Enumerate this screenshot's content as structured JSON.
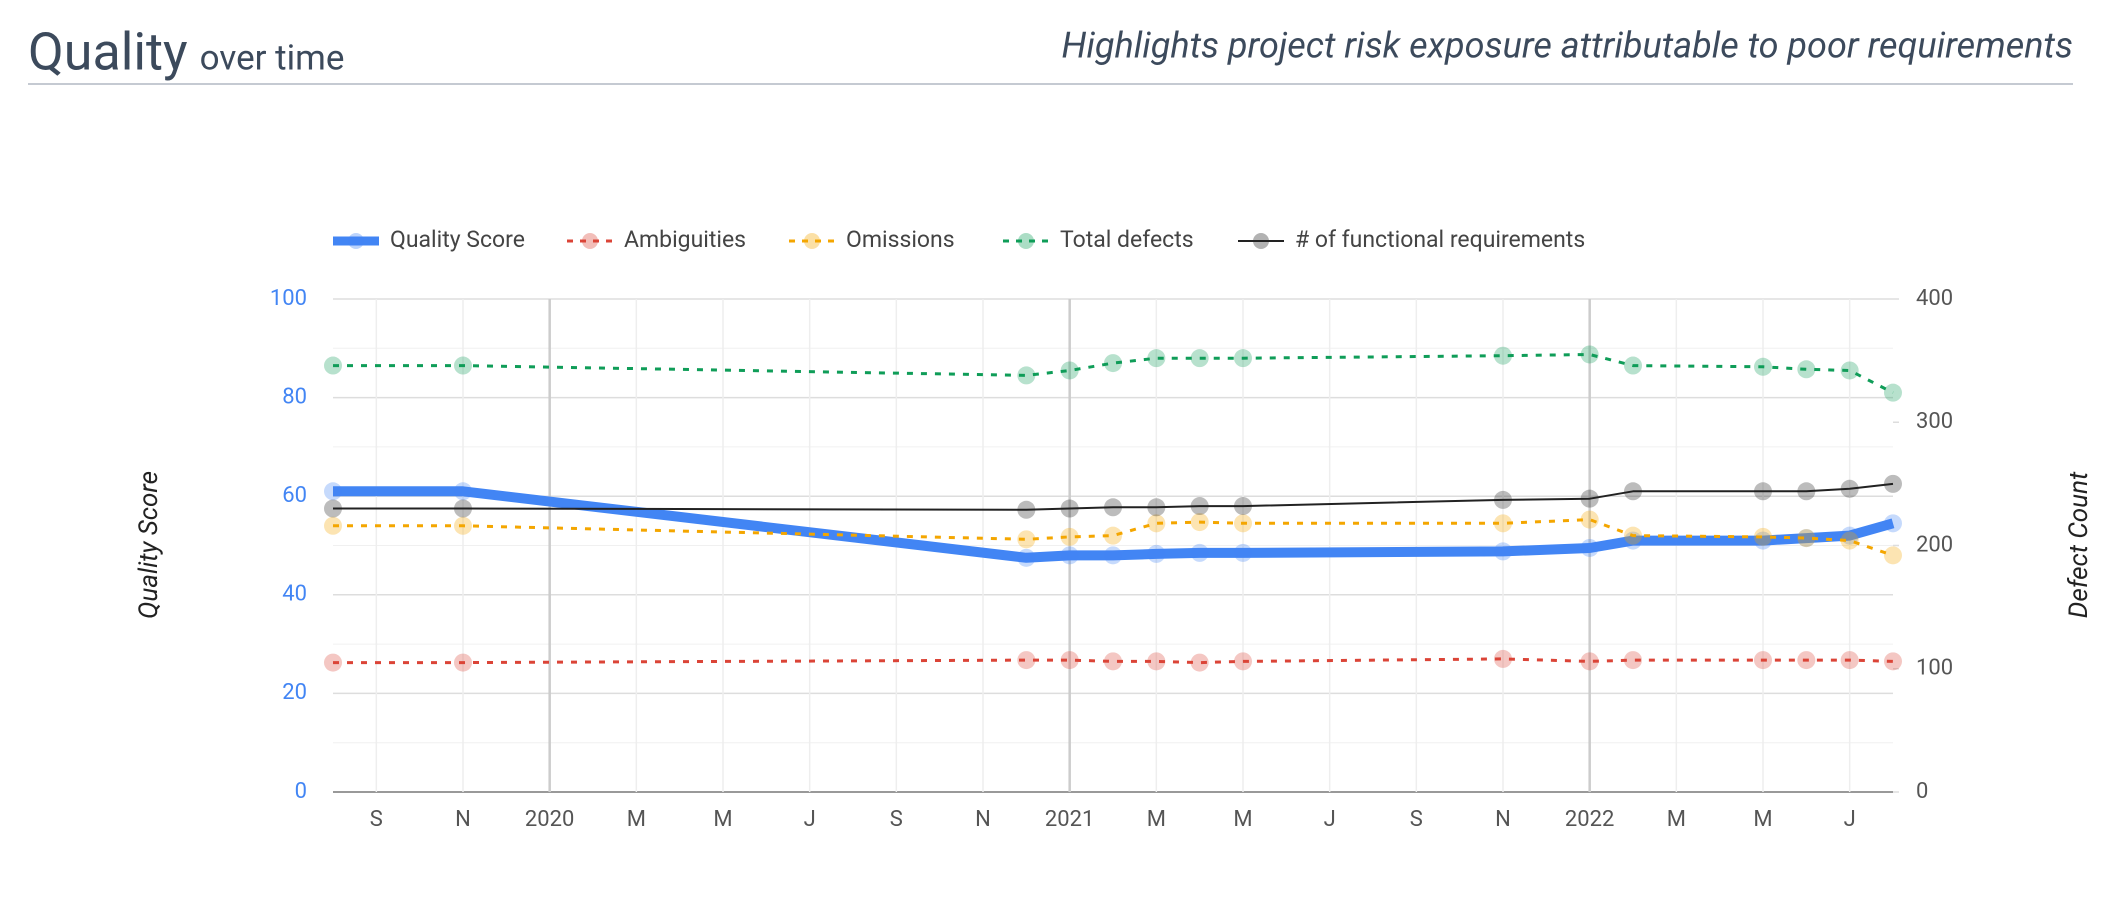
{
  "chart_data": {
    "type": "line",
    "title": "Quality",
    "title_tail": "over time",
    "subtitle": "Highlights project risk exposure attributable to poor requirements",
    "y_label": "Quality Score",
    "y2_label": "Defect Count",
    "x": [
      "2019-08",
      "2019-11",
      "2020-12",
      "2021-01",
      "2021-02",
      "2021-03",
      "2021-04",
      "2021-05",
      "2021-11",
      "2022-01",
      "2022-02",
      "2022-05",
      "2022-06",
      "2022-07",
      "2022-08"
    ],
    "xlim": [
      "2019-08",
      "2022-08"
    ],
    "xticks": [
      {
        "value": "2019-09",
        "label": "S"
      },
      {
        "value": "2019-11",
        "label": "N"
      },
      {
        "value": "2020-01",
        "label": "2020"
      },
      {
        "value": "2020-03",
        "label": "M"
      },
      {
        "value": "2020-05",
        "label": "M"
      },
      {
        "value": "2020-07",
        "label": "J"
      },
      {
        "value": "2020-09",
        "label": "S"
      },
      {
        "value": "2020-11",
        "label": "N"
      },
      {
        "value": "2021-01",
        "label": "2021"
      },
      {
        "value": "2021-03",
        "label": "M"
      },
      {
        "value": "2021-05",
        "label": "M"
      },
      {
        "value": "2021-07",
        "label": "J"
      },
      {
        "value": "2021-09",
        "label": "S"
      },
      {
        "value": "2021-11",
        "label": "N"
      },
      {
        "value": "2022-01",
        "label": "2022"
      },
      {
        "value": "2022-03",
        "label": "M"
      },
      {
        "value": "2022-05",
        "label": "M"
      },
      {
        "value": "2022-07",
        "label": "J"
      }
    ],
    "ylim": [
      0,
      100
    ],
    "yticks": [
      0,
      20,
      40,
      60,
      80,
      100
    ],
    "y2lim": [
      0,
      400
    ],
    "y2ticks": [
      0,
      100,
      200,
      300,
      400
    ],
    "grid": true,
    "legend": "top",
    "series": [
      {
        "name": "Quality Score",
        "color": "#4285f4",
        "axis": "y",
        "dashed": false,
        "width": 10,
        "values": [
          61,
          61,
          47.5,
          48,
          48,
          48.3,
          48.5,
          48.5,
          48.8,
          49.5,
          51,
          51,
          51.5,
          52,
          54.5
        ]
      },
      {
        "name": "Ambiguities",
        "color": "#db4437",
        "axis": "y2",
        "dashed": true,
        "width": 3,
        "values": [
          105,
          105,
          107,
          107,
          106,
          106,
          105,
          106,
          108,
          106,
          107,
          107,
          107,
          107,
          106
        ]
      },
      {
        "name": "Omissions",
        "color": "#f4a600",
        "axis": "y2",
        "dashed": true,
        "width": 3,
        "values": [
          216,
          216,
          205,
          207,
          208,
          218,
          219,
          218,
          218,
          221,
          208,
          207,
          206,
          204,
          192
        ]
      },
      {
        "name": "Total defects",
        "color": "#0f9d58",
        "axis": "y2",
        "dashed": true,
        "width": 3,
        "values": [
          346,
          346,
          338,
          342,
          348,
          352,
          352,
          352,
          354,
          355,
          346,
          345,
          343,
          342,
          324
        ]
      },
      {
        "name": "# of functional requirements",
        "color": "#222222",
        "axis": "y2",
        "dashed": false,
        "width": 2,
        "values": [
          230,
          230,
          229,
          230,
          231,
          231,
          232,
          232,
          237,
          238,
          244,
          244,
          244,
          246,
          250
        ]
      }
    ]
  }
}
